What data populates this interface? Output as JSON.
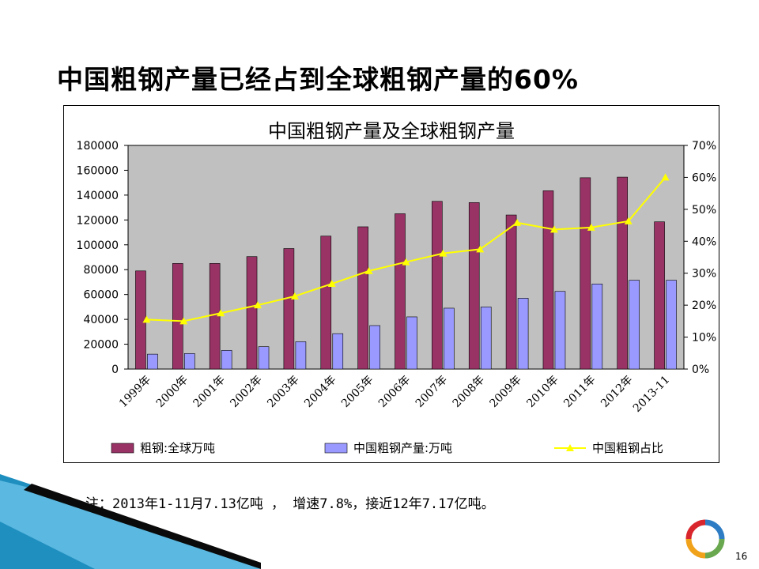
{
  "slide": {
    "title": "中国粗钢产量已经占到全球粗钢产量的60%",
    "note": "注：2013年1-11月7.13亿吨 ， 增速7.8%，接近12年7.17亿吨。",
    "page_number": "16"
  },
  "colors": {
    "world_bar": "#993366",
    "china_bar": "#9999ff",
    "share_line": "#ffff00",
    "plot_bg": "#c0c0c0"
  },
  "chart_data": {
    "type": "bar",
    "title": "中国粗钢产量及全球粗钢产量",
    "categories": [
      "1999年",
      "2000年",
      "2001年",
      "2002年",
      "2003年",
      "2004年",
      "2005年",
      "2006年",
      "2007年",
      "2008年",
      "2009年",
      "2010年",
      "2011年",
      "2012年",
      "2013-11"
    ],
    "series": [
      {
        "name": "粗钢:全球万吨",
        "type": "bar",
        "axis": "left",
        "values": [
          79000,
          85000,
          85000,
          90500,
          97000,
          107000,
          114500,
          125000,
          135000,
          134000,
          124000,
          143500,
          154000,
          154500,
          118500
        ]
      },
      {
        "name": "中国粗钢产量:万吨",
        "type": "bar",
        "axis": "left",
        "values": [
          12000,
          12500,
          15000,
          18000,
          22000,
          28500,
          35000,
          42000,
          49000,
          50000,
          57000,
          62500,
          68500,
          71500,
          71500
        ]
      },
      {
        "name": "中国粗钢占比",
        "type": "line",
        "axis": "right",
        "marker": "triangle",
        "values": [
          0.155,
          0.15,
          0.175,
          0.2,
          0.228,
          0.267,
          0.307,
          0.335,
          0.362,
          0.375,
          0.458,
          0.437,
          0.443,
          0.463,
          0.6
        ]
      }
    ],
    "left_axis": {
      "ylim": [
        0,
        180000
      ],
      "ticks": [
        "0",
        "20000",
        "40000",
        "60000",
        "80000",
        "100000",
        "120000",
        "140000",
        "160000",
        "180000"
      ]
    },
    "right_axis": {
      "ylim": [
        0,
        0.7
      ],
      "ticks": [
        "0%",
        "10%",
        "20%",
        "30%",
        "40%",
        "50%",
        "60%",
        "70%"
      ]
    },
    "grid": false,
    "legend_position": "bottom"
  }
}
